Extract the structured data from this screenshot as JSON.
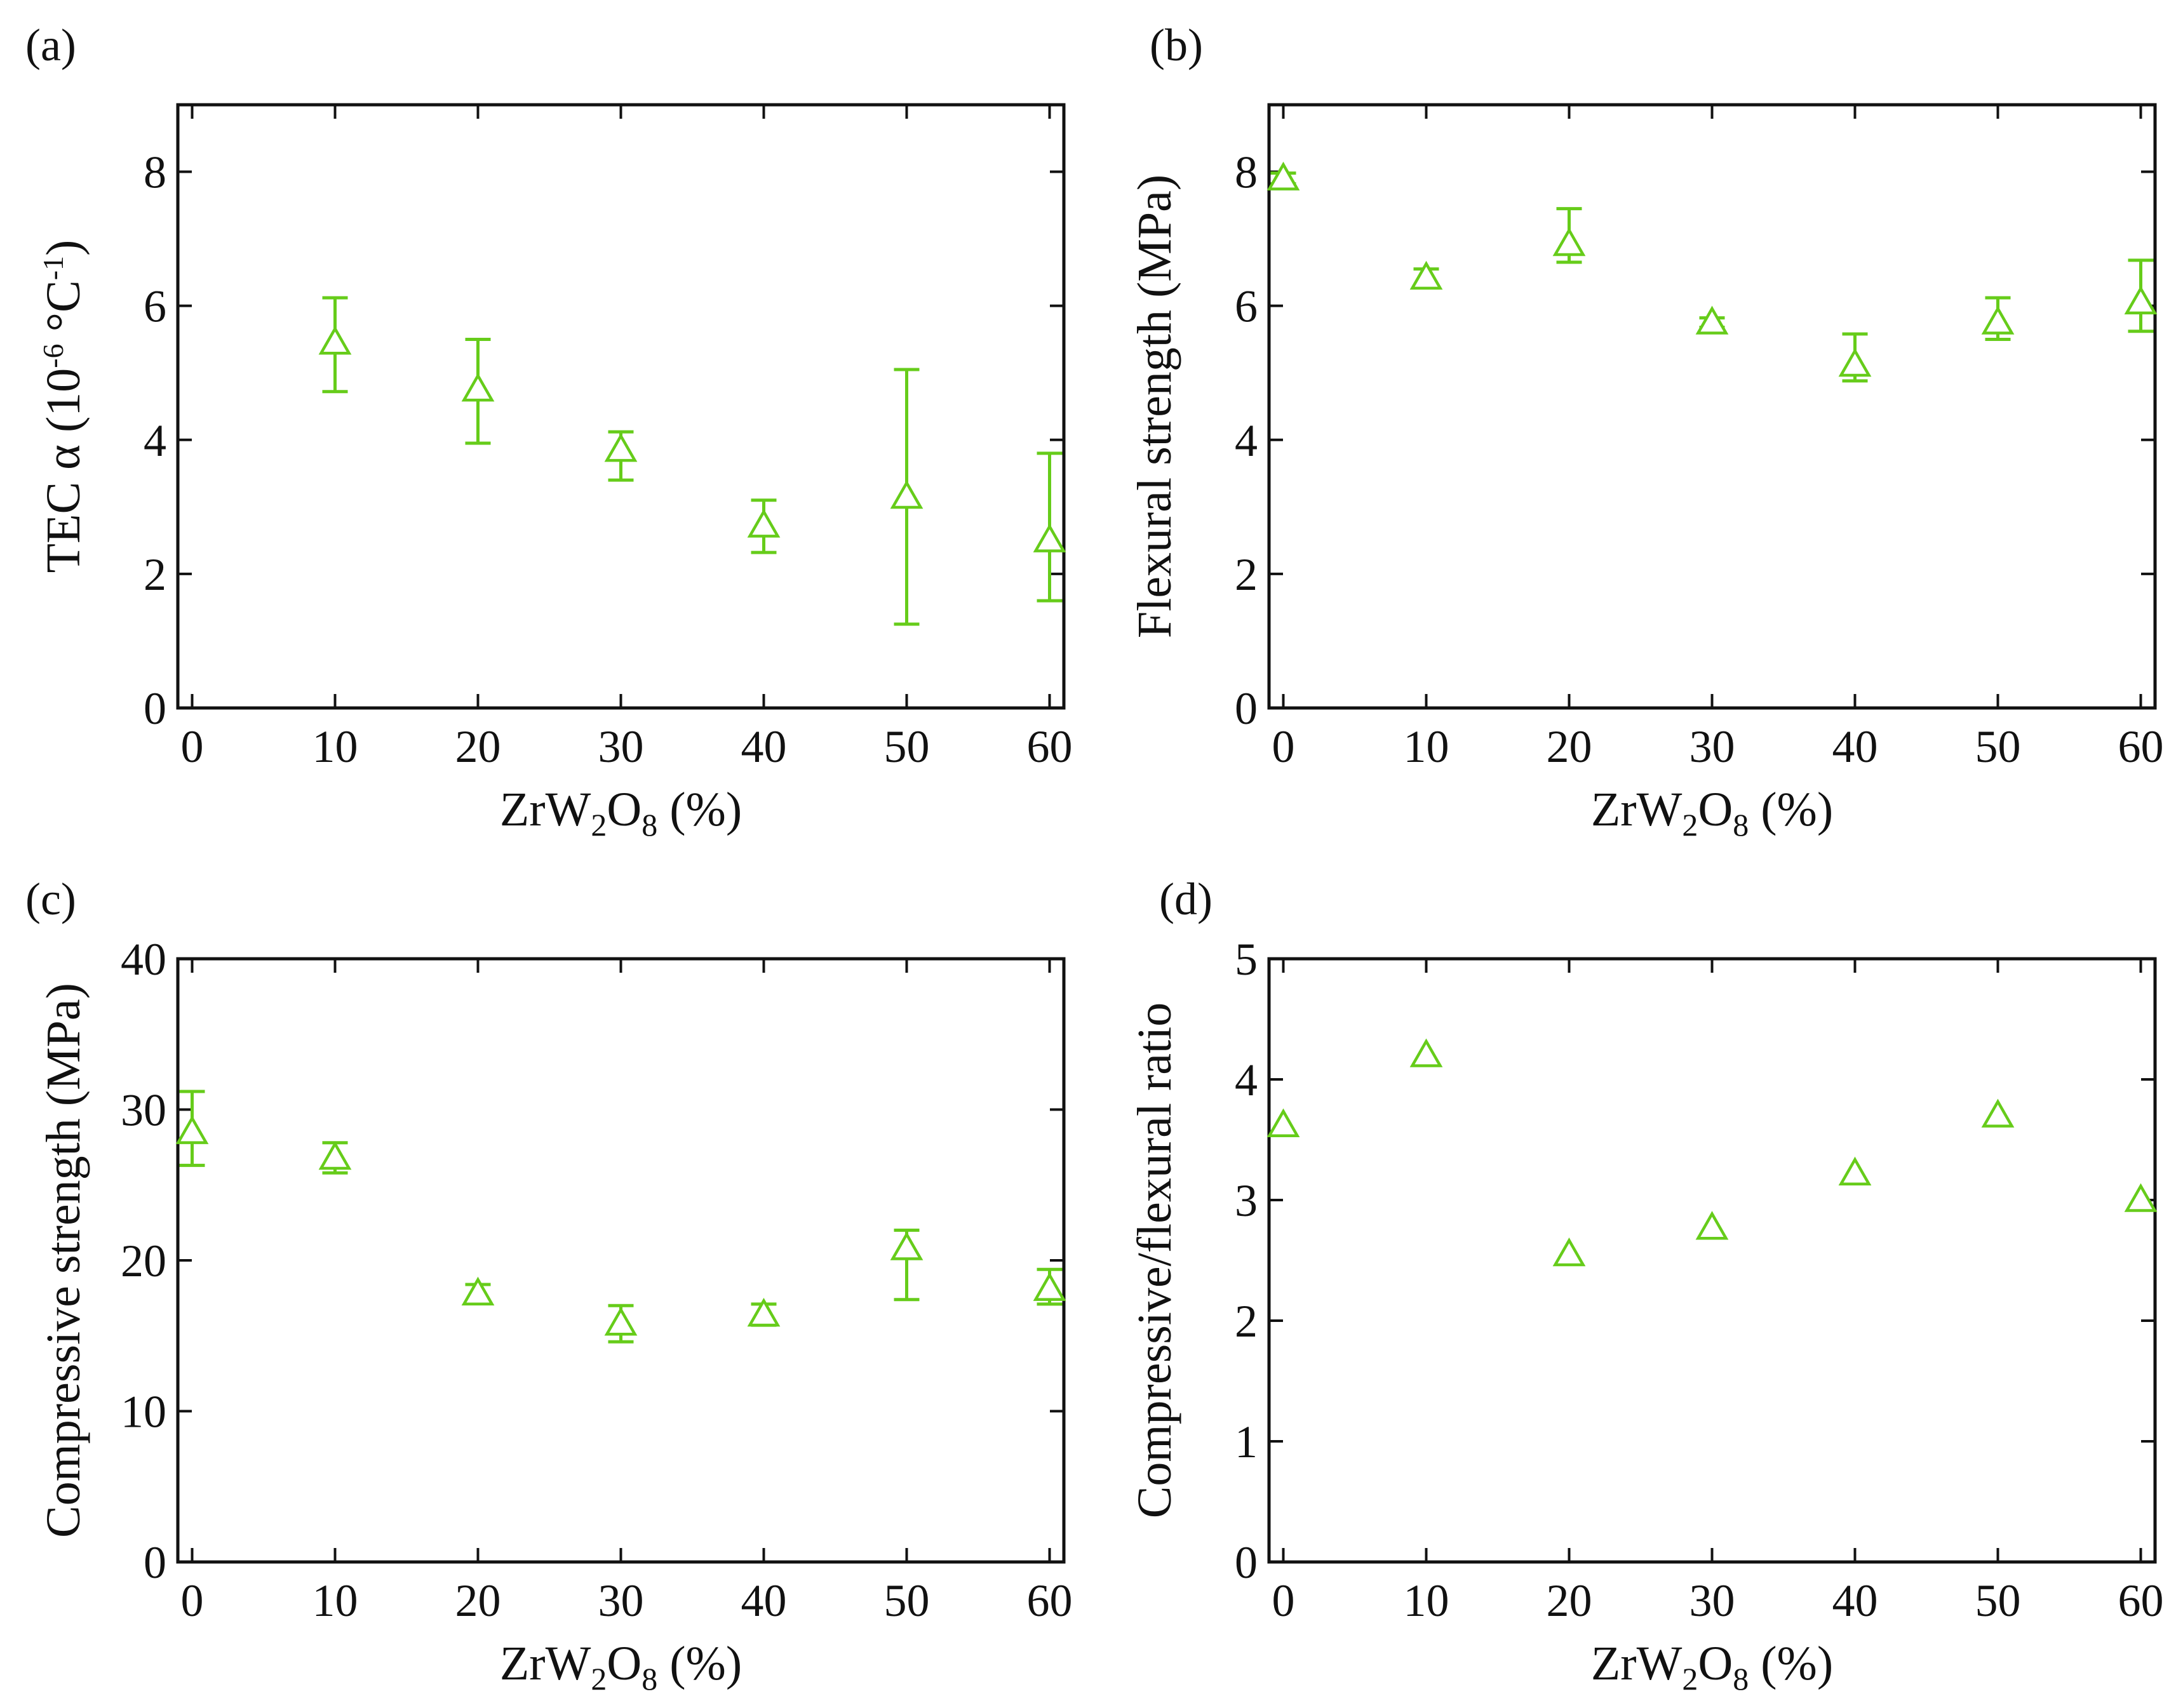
{
  "figure": {
    "marker_color": "#66cc1a",
    "axis_color": "#111111"
  },
  "chart_data": [
    {
      "panel_label": "(a)",
      "type": "scatter",
      "title": "",
      "xlabel": {
        "main": "ZrW",
        "sub1": "2",
        "mid": "O",
        "sub2": "8",
        "end": " (%)"
      },
      "ylabel": {
        "main": "TEC α (10",
        "sup1": "-6",
        "mid": " °C",
        "sup2": "-1",
        "end": ")"
      },
      "xlim": [
        -1,
        61
      ],
      "ylim": [
        0,
        9
      ],
      "xticks": [
        0,
        10,
        20,
        30,
        40,
        50,
        60
      ],
      "xtick_labels": [
        "0",
        "10",
        "20",
        "30",
        "40",
        "50",
        "60"
      ],
      "yticks": [
        0,
        2,
        4,
        6,
        8
      ],
      "ytick_labels": [
        "0",
        "2",
        "4",
        "6",
        "8"
      ],
      "grid": false,
      "series": [
        {
          "name": "TEC",
          "marker": "open-triangle",
          "x": [
            10,
            20,
            30,
            40,
            50,
            60
          ],
          "y": [
            5.45,
            4.75,
            3.85,
            2.72,
            3.15,
            2.5
          ],
          "yerr_low": [
            4.72,
            3.95,
            3.4,
            2.32,
            1.25,
            1.6
          ],
          "yerr_high": [
            6.12,
            5.5,
            4.12,
            3.1,
            5.05,
            3.8
          ]
        }
      ]
    },
    {
      "panel_label": "(b)",
      "type": "scatter",
      "title": "",
      "xlabel": {
        "main": "ZrW",
        "sub1": "2",
        "mid": "O",
        "sub2": "8",
        "end": " (%)"
      },
      "ylabel": {
        "main": "Flexural strength (MPa)"
      },
      "xlim": [
        -1,
        61
      ],
      "ylim": [
        0,
        9
      ],
      "xticks": [
        0,
        10,
        20,
        30,
        40,
        50,
        60
      ],
      "xtick_labels": [
        "0",
        "10",
        "20",
        "30",
        "40",
        "50",
        "60"
      ],
      "yticks": [
        0,
        2,
        4,
        6,
        8
      ],
      "ytick_labels": [
        "0",
        "2",
        "4",
        "6",
        "8"
      ],
      "grid": false,
      "series": [
        {
          "name": "Flexural strength",
          "marker": "open-triangle",
          "x": [
            0,
            10,
            20,
            30,
            40,
            50,
            60
          ],
          "y": [
            7.9,
            6.42,
            6.92,
            5.75,
            5.12,
            5.75,
            6.05
          ],
          "yerr_low": [
            7.82,
            6.3,
            6.65,
            5.68,
            4.88,
            5.5,
            5.62
          ],
          "yerr_high": [
            7.98,
            6.55,
            7.45,
            5.82,
            5.58,
            6.12,
            6.68
          ]
        }
      ]
    },
    {
      "panel_label": "(c)",
      "type": "scatter",
      "title": "",
      "xlabel": {
        "main": "ZrW",
        "sub1": "2",
        "mid": "O",
        "sub2": "8",
        "end": " (%)"
      },
      "ylabel": {
        "main": "Compressive strength (MPa)"
      },
      "xlim": [
        -1,
        61
      ],
      "ylim": [
        0,
        40
      ],
      "xticks": [
        0,
        10,
        20,
        30,
        40,
        50,
        60
      ],
      "xtick_labels": [
        "0",
        "10",
        "20",
        "30",
        "40",
        "50",
        "60"
      ],
      "yticks": [
        0,
        10,
        20,
        30,
        40
      ],
      "ytick_labels": [
        "0",
        "10",
        "20",
        "30",
        "40"
      ],
      "grid": false,
      "series": [
        {
          "name": "Compressive strength",
          "marker": "open-triangle",
          "x": [
            0,
            10,
            20,
            30,
            40,
            50,
            60
          ],
          "y": [
            28.5,
            26.8,
            17.8,
            15.8,
            16.4,
            20.8,
            18.1
          ],
          "yerr_low": [
            26.3,
            25.8,
            17.2,
            14.6,
            15.7,
            17.4,
            17.1
          ],
          "yerr_high": [
            31.2,
            27.8,
            18.4,
            17.0,
            17.1,
            22.0,
            19.4
          ]
        }
      ]
    },
    {
      "panel_label": "(d)",
      "type": "scatter",
      "title": "",
      "xlabel": {
        "main": "ZrW",
        "sub1": "2",
        "mid": "O",
        "sub2": "8",
        "end": " (%)"
      },
      "ylabel": {
        "main": "Compressive/flexural ratio"
      },
      "xlim": [
        -1,
        61
      ],
      "ylim": [
        0,
        5
      ],
      "xticks": [
        0,
        10,
        20,
        30,
        40,
        50,
        60
      ],
      "xtick_labels": [
        "0",
        "10",
        "20",
        "30",
        "40",
        "50",
        "60"
      ],
      "yticks": [
        0,
        1,
        2,
        3,
        4,
        5
      ],
      "ytick_labels": [
        "0",
        "1",
        "2",
        "3",
        "4",
        "5"
      ],
      "grid": false,
      "series": [
        {
          "name": "Compressive/flexural ratio",
          "marker": "open-triangle",
          "x": [
            0,
            10,
            20,
            30,
            40,
            50,
            60
          ],
          "y": [
            3.62,
            4.2,
            2.55,
            2.77,
            3.22,
            3.7,
            3.0
          ]
        }
      ]
    }
  ]
}
